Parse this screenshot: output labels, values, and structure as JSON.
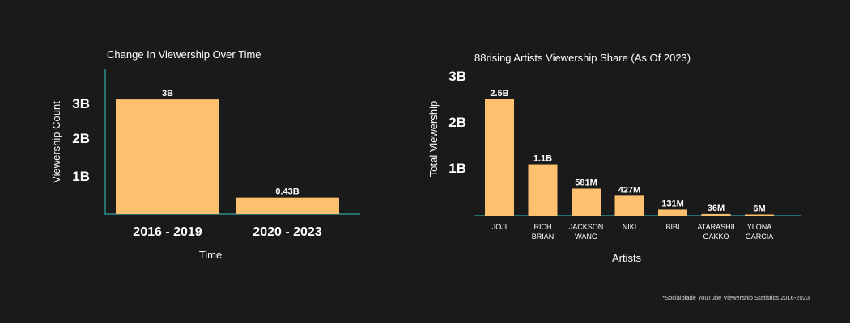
{
  "colors": {
    "background": "#1a1a1a",
    "bar": "#fdc06f",
    "axis": "#2a8c8c",
    "text": "#ffffff"
  },
  "chart_data": [
    {
      "type": "bar",
      "title": "Change In Viewership Over Time",
      "xlabel": "Time",
      "ylabel": "Viewership Count",
      "yticks": [
        "1B",
        "2B",
        "3B"
      ],
      "ylim": [
        0,
        3.5
      ],
      "categories": [
        "2016 - 2019",
        "2020 - 2023"
      ],
      "values": [
        3,
        0.43
      ],
      "data_labels": [
        "3B",
        "0.43B"
      ]
    },
    {
      "type": "bar",
      "title": "88rising Artists Viewership Share (As Of 2023)",
      "xlabel": "Artists",
      "ylabel": "Total Viewership",
      "yticks": [
        "1B",
        "2B",
        "3B"
      ],
      "ylim": [
        0,
        3
      ],
      "categories": [
        "JOJI",
        "RICH BRIAN",
        "JACKSON WANG",
        "NIKI",
        "BIBI",
        "ATARASHII GAKKO",
        "YLONA GARCIA"
      ],
      "category_lines": [
        [
          "JOJI"
        ],
        [
          "RICH",
          "BRIAN"
        ],
        [
          "JACKSON",
          "WANG"
        ],
        [
          "NIKI"
        ],
        [
          "BIBI"
        ],
        [
          "ATARASHII",
          "GAKKO"
        ],
        [
          "YLONA",
          "GARCIA"
        ]
      ],
      "values": [
        2.5,
        1.1,
        0.581,
        0.427,
        0.131,
        0.036,
        0.006
      ],
      "data_labels": [
        "2.5B",
        "1.1B",
        "581M",
        "427M",
        "131M",
        "36M",
        "6M"
      ]
    }
  ],
  "footnote": "*Socialblade YouTube Viewership Statistics 2016-2023"
}
